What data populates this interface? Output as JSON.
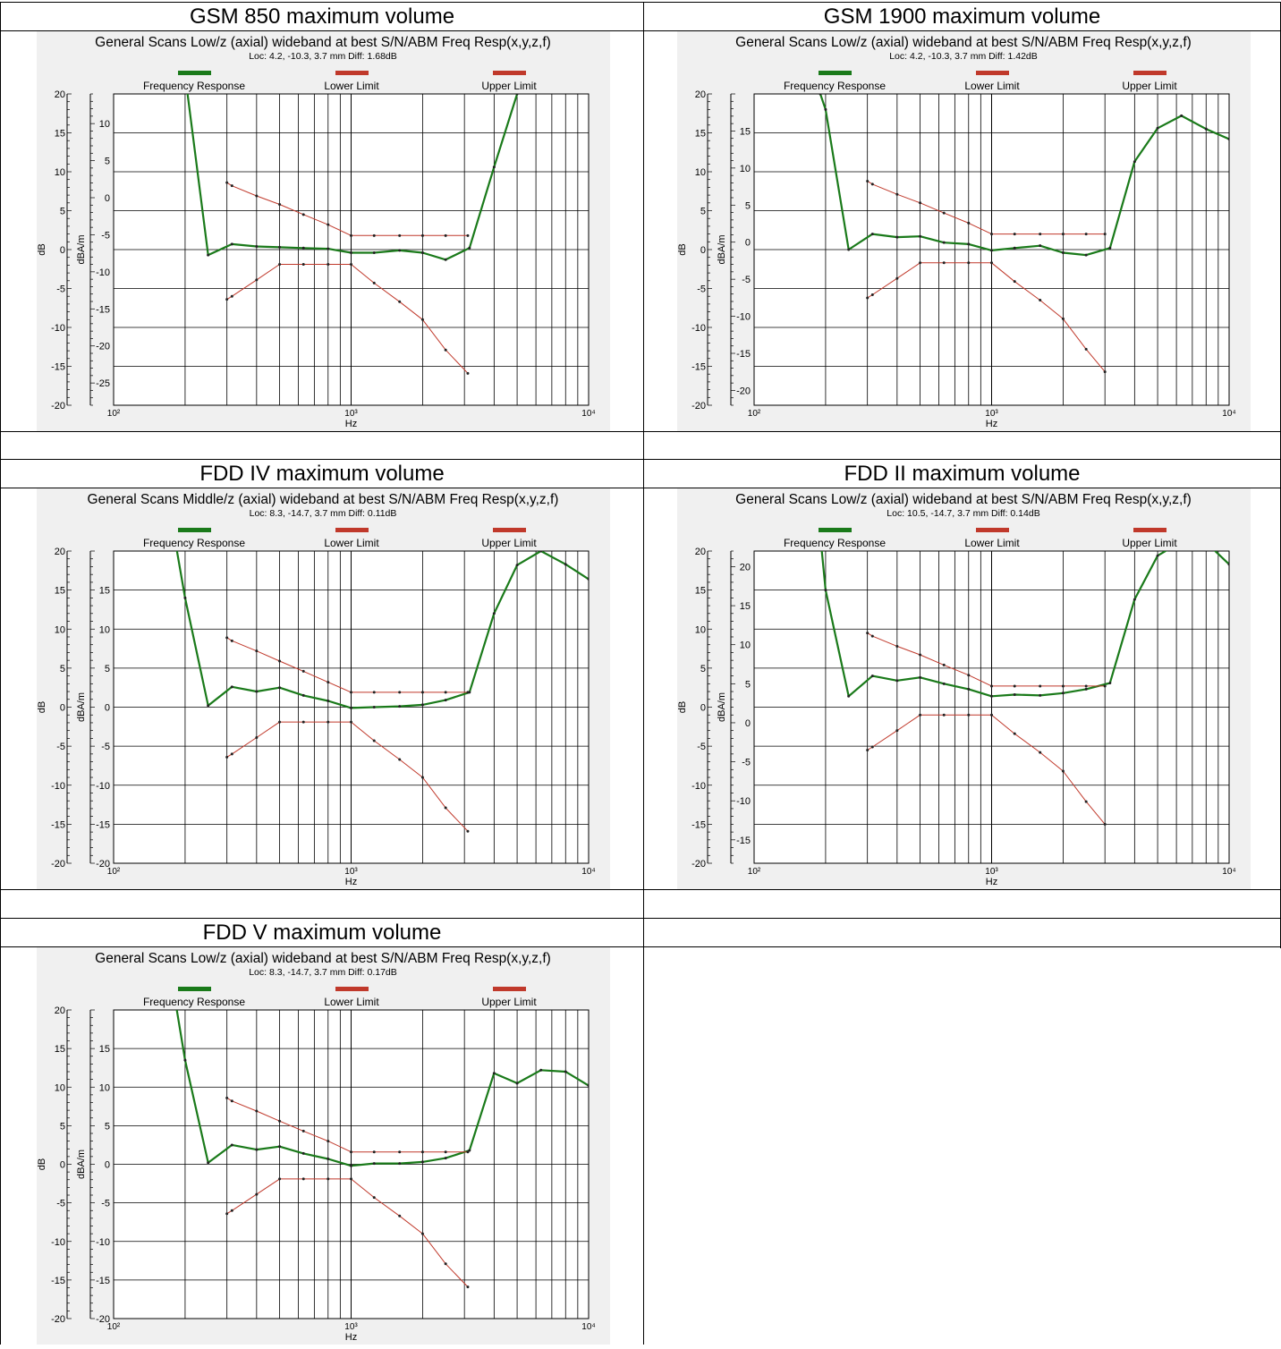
{
  "table_titles": [
    "GSM 850 maximum volume",
    "GSM 1900 maximum volume",
    "FDD IV maximum volume",
    "FDD II maximum volume",
    "FDD V maximum volume"
  ],
  "colors": {
    "frequency_response": "#1a7a1a",
    "limits": "#c0392b",
    "panel_bg": "#f0f0f0"
  },
  "chart_data": [
    {
      "type": "line",
      "title": "General Scans Low/z (axial) wideband at best S/N/ABM Freq Resp(x,y,z,f)",
      "subtitle": "Loc: 4.2, -10.3, 3.7 mm Diff: 1.68dB",
      "legend": [
        "Frequency Response",
        "Lower Limit",
        "Upper Limit"
      ],
      "xlabel": "Hz",
      "ylabel_left": "dB",
      "ylabel_right": "dBA/m",
      "x_scale": "log",
      "xlim": [
        100,
        10000
      ],
      "x_ticks": [
        "10²",
        "10³",
        "10⁴"
      ],
      "ylim_left": [
        -20,
        20
      ],
      "ylim_right": [
        -28,
        14
      ],
      "y_ticks_left": [
        "20",
        "15",
        "10",
        "5",
        "0",
        "-5",
        "-10",
        "-15",
        "-20"
      ],
      "y_ticks_right": [
        "10",
        "5",
        "0",
        "-5",
        "-10",
        "-15",
        "-20",
        "-25"
      ],
      "series": [
        {
          "name": "Frequency Response",
          "x": [
            180,
            200,
            250,
            315,
            400,
            500,
            630,
            800,
            1000,
            1250,
            1600,
            2000,
            2500,
            3150,
            4000,
            5000
          ],
          "y": [
            28,
            22.5,
            -0.7,
            0.7,
            0.4,
            0.3,
            0.2,
            0.1,
            -0.4,
            -0.4,
            -0.1,
            -0.4,
            -1.3,
            0.2,
            10.6,
            20
          ]
        },
        {
          "name": "Lower Limit",
          "x": [
            300,
            315,
            400,
            500,
            630,
            800,
            1000,
            1250,
            1600,
            2000,
            2500,
            3100
          ],
          "y": [
            -6.4,
            -6.0,
            -3.9,
            -1.9,
            -1.9,
            -1.9,
            -1.9,
            -4.3,
            -6.7,
            -9.0,
            -12.9,
            -15.9
          ]
        },
        {
          "name": "Upper Limit",
          "x": [
            300,
            315,
            400,
            500,
            630,
            800,
            1000,
            1250,
            1600,
            2000,
            2500,
            3100
          ],
          "y": [
            8.6,
            8.2,
            6.9,
            5.8,
            4.5,
            3.2,
            1.8,
            1.8,
            1.8,
            1.8,
            1.8,
            1.8
          ]
        }
      ]
    },
    {
      "type": "line",
      "title": "General Scans Low/z (axial) wideband at best S/N/ABM Freq Resp(x,y,z,f)",
      "subtitle": "Loc: 4.2, -10.3, 3.7 mm Diff: 1.42dB",
      "legend": [
        "Frequency Response",
        "Lower Limit",
        "Upper Limit"
      ],
      "xlabel": "Hz",
      "ylabel_left": "dB",
      "ylabel_right": "dBA/m",
      "x_scale": "log",
      "xlim": [
        100,
        10000
      ],
      "x_ticks": [
        "10²",
        "10³",
        "10⁴"
      ],
      "ylim_left": [
        -20,
        20
      ],
      "ylim_right": [
        -22,
        20
      ],
      "y_ticks_left": [
        "20",
        "15",
        "10",
        "5",
        "0",
        "-5",
        "-10",
        "-15",
        "-20"
      ],
      "y_ticks_right": [
        "15",
        "10",
        "5",
        "0",
        "-5",
        "-10",
        "-15",
        "-20"
      ],
      "series": [
        {
          "name": "Frequency Response",
          "x": [
            190,
            200,
            250,
            315,
            400,
            500,
            630,
            800,
            1000,
            1250,
            1600,
            2000,
            2500,
            3150,
            4000,
            5000,
            6300,
            8000,
            10000
          ],
          "y": [
            20,
            18,
            0,
            2,
            1.6,
            1.7,
            0.9,
            0.7,
            -0.1,
            0.2,
            0.5,
            -0.4,
            -0.7,
            0.2,
            11.3,
            15.6,
            17.2,
            15.5,
            14.2
          ]
        },
        {
          "name": "Lower Limit",
          "x": [
            300,
            315,
            400,
            500,
            630,
            800,
            1000,
            1250,
            1600,
            2000,
            2500,
            3000
          ],
          "y": [
            -6.2,
            -5.8,
            -3.7,
            -1.7,
            -1.7,
            -1.7,
            -1.7,
            -4.1,
            -6.5,
            -8.9,
            -12.8,
            -15.7
          ]
        },
        {
          "name": "Upper Limit",
          "x": [
            300,
            315,
            400,
            500,
            630,
            800,
            1000,
            1250,
            1600,
            2000,
            2500,
            3000
          ],
          "y": [
            8.8,
            8.4,
            7.1,
            6.0,
            4.7,
            3.4,
            2.0,
            2.0,
            2.0,
            2.0,
            2.0,
            2.0
          ]
        }
      ]
    },
    {
      "type": "line",
      "title": "General Scans Middle/z (axial) wideband at best S/N/ABM Freq Resp(x,y,z,f)",
      "subtitle": "Loc: 8.3, -14.7, 3.7 mm Diff: 0.11dB",
      "legend": [
        "Frequency Response",
        "Lower Limit",
        "Upper Limit"
      ],
      "xlabel": "Hz",
      "ylabel_left": "dB",
      "ylabel_right": "dBA/m",
      "x_scale": "log",
      "xlim": [
        100,
        10000
      ],
      "x_ticks": [
        "10²",
        "10³",
        "10⁴"
      ],
      "ylim_left": [
        -20,
        20
      ],
      "ylim_right": [
        -20,
        20
      ],
      "y_ticks_left": [
        "20",
        "15",
        "10",
        "5",
        "0",
        "-5",
        "-10",
        "-15",
        "-20"
      ],
      "y_ticks_right": [
        "15",
        "10",
        "5",
        "0",
        "-5",
        "-10",
        "-15",
        "-20"
      ],
      "series": [
        {
          "name": "Frequency Response",
          "x": [
            180,
            200,
            250,
            315,
            400,
            500,
            630,
            800,
            1000,
            1250,
            1600,
            2000,
            2500,
            3150,
            4000,
            5000,
            6300,
            8000,
            10000
          ],
          "y": [
            22,
            14,
            0.2,
            2.6,
            2.0,
            2.5,
            1.5,
            0.8,
            -0.1,
            0,
            0.1,
            0.3,
            0.9,
            1.9,
            12,
            18.2,
            20,
            18.3,
            16.4
          ]
        },
        {
          "name": "Lower Limit",
          "x": [
            300,
            315,
            400,
            500,
            630,
            800,
            1000,
            1250,
            1600,
            2000,
            2500,
            3100
          ],
          "y": [
            -6.4,
            -6.0,
            -3.9,
            -1.9,
            -1.9,
            -1.9,
            -1.9,
            -4.3,
            -6.7,
            -9.0,
            -12.9,
            -15.9
          ]
        },
        {
          "name": "Upper Limit",
          "x": [
            300,
            315,
            400,
            500,
            630,
            800,
            1000,
            1250,
            1600,
            2000,
            2500,
            3100
          ],
          "y": [
            8.9,
            8.5,
            7.2,
            5.9,
            4.6,
            3.2,
            1.9,
            1.9,
            1.9,
            1.9,
            1.9,
            1.9
          ]
        }
      ]
    },
    {
      "type": "line",
      "title": "General Scans Low/z (axial) wideband at best S/N/ABM Freq Resp(x,y,z,f)",
      "subtitle": "Loc: 10.5, -14.7, 3.7 mm Diff: 0.14dB",
      "legend": [
        "Frequency Response",
        "Lower Limit",
        "Upper Limit"
      ],
      "xlabel": "Hz",
      "ylabel_left": "dB",
      "ylabel_right": "dBA/m",
      "x_scale": "log",
      "xlim": [
        100,
        10000
      ],
      "x_ticks": [
        "10²",
        "10³",
        "10⁴"
      ],
      "ylim_left": [
        -20,
        20
      ],
      "ylim_right": [
        -18,
        22
      ],
      "y_ticks_left": [
        "20",
        "15",
        "10",
        "5",
        "0",
        "-5",
        "-10",
        "-15",
        "-20"
      ],
      "y_ticks_right": [
        "20",
        "15",
        "10",
        "5",
        "0",
        "-5",
        "-10",
        "-15"
      ],
      "series": [
        {
          "name": "Frequency Response",
          "x": [
            190,
            200,
            250,
            315,
            400,
            500,
            630,
            800,
            1000,
            1250,
            1600,
            2000,
            2500,
            3150,
            4000,
            5000,
            6300,
            8000,
            10000
          ],
          "y": [
            22,
            15,
            1.4,
            4,
            3.4,
            3.8,
            3.0,
            2.3,
            1.4,
            1.6,
            1.5,
            1.8,
            2.3,
            3.1,
            13.8,
            19.4,
            21.2,
            21.1,
            18.3
          ]
        },
        {
          "name": "Lower Limit",
          "x": [
            300,
            315,
            400,
            500,
            630,
            800,
            1000,
            1250,
            1600,
            2000,
            2500,
            3000
          ],
          "y": [
            -5.5,
            -5.1,
            -3.0,
            -1.0,
            -1.0,
            -1.0,
            -1.0,
            -3.4,
            -5.8,
            -8.2,
            -12.1,
            -15.0
          ]
        },
        {
          "name": "Upper Limit",
          "x": [
            300,
            315,
            400,
            500,
            630,
            800,
            1000,
            1250,
            1600,
            2000,
            2500,
            3000
          ],
          "y": [
            9.5,
            9.1,
            7.8,
            6.7,
            5.4,
            4.1,
            2.7,
            2.7,
            2.7,
            2.7,
            2.7,
            2.7
          ]
        }
      ]
    },
    {
      "type": "line",
      "title": "General Scans Low/z (axial) wideband at best S/N/ABM Freq Resp(x,y,z,f)",
      "subtitle": "Loc: 8.3, -14.7, 3.7 mm Diff: 0.17dB",
      "legend": [
        "Frequency Response",
        "Lower Limit",
        "Upper Limit"
      ],
      "xlabel": "Hz",
      "ylabel_left": "dB",
      "ylabel_right": "dBA/m",
      "x_scale": "log",
      "xlim": [
        100,
        10000
      ],
      "x_ticks": [
        "10²",
        "10³",
        "10⁴"
      ],
      "ylim_left": [
        -20,
        20
      ],
      "ylim_right": [
        -20,
        20
      ],
      "y_ticks_left": [
        "20",
        "15",
        "10",
        "5",
        "0",
        "-5",
        "-10",
        "-15",
        "-20"
      ],
      "y_ticks_right": [
        "15",
        "10",
        "5",
        "0",
        "-5",
        "-10",
        "-15",
        "-20"
      ],
      "series": [
        {
          "name": "Frequency Response",
          "x": [
            180,
            200,
            250,
            315,
            400,
            500,
            630,
            800,
            1000,
            1250,
            1600,
            2000,
            2500,
            3150,
            4000,
            5000,
            6300,
            8000,
            10000
          ],
          "y": [
            22,
            13.5,
            0.2,
            2.5,
            1.9,
            2.3,
            1.4,
            0.7,
            -0.2,
            0.1,
            0.1,
            0.3,
            0.8,
            1.8,
            11.8,
            10.5,
            12.2,
            12,
            10.2
          ]
        },
        {
          "name": "Lower Limit",
          "x": [
            300,
            315,
            400,
            500,
            630,
            800,
            1000,
            1250,
            1600,
            2000,
            2500,
            3100
          ],
          "y": [
            -6.4,
            -6.0,
            -3.9,
            -1.9,
            -1.9,
            -1.9,
            -1.9,
            -4.3,
            -6.7,
            -9.0,
            -12.9,
            -15.9
          ]
        },
        {
          "name": "Upper Limit",
          "x": [
            300,
            315,
            400,
            500,
            630,
            800,
            1000,
            1250,
            1600,
            2000,
            2500,
            3100
          ],
          "y": [
            8.6,
            8.2,
            6.9,
            5.6,
            4.3,
            3.0,
            1.6,
            1.6,
            1.6,
            1.6,
            1.6,
            1.6
          ]
        }
      ]
    }
  ]
}
